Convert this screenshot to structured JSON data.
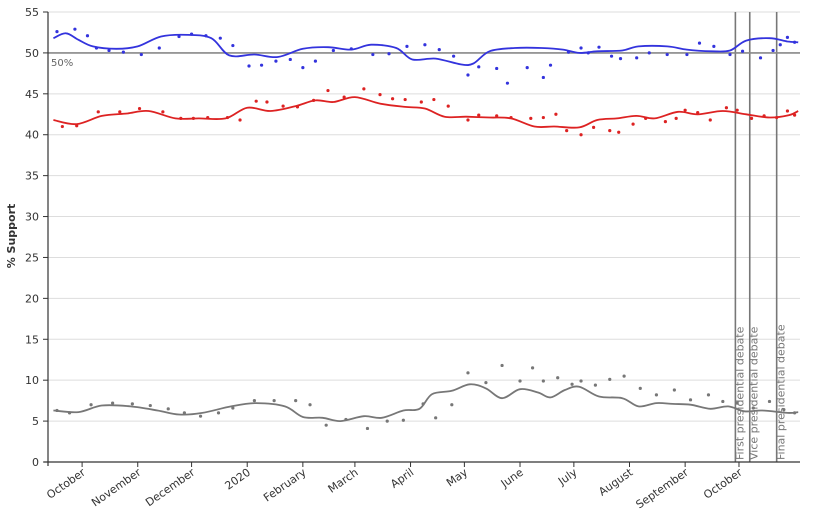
{
  "chart_data": {
    "type": "line",
    "ylabel": "% Support",
    "ylim": [
      0,
      55
    ],
    "y_ticks": [
      "0",
      "5",
      "10",
      "15",
      "20",
      "25",
      "30",
      "35",
      "40",
      "45",
      "50",
      "55"
    ],
    "grid": "horizontal",
    "x_tick_labels": [
      "October",
      "November",
      "December",
      "2020",
      "February",
      "March",
      "April",
      "May",
      "June",
      "July",
      "August",
      "September",
      "October"
    ],
    "reference_line": {
      "value": 50,
      "label": "50%"
    },
    "events": [
      "First presidential debate",
      "Vice presidential debate",
      "Final presidential debate"
    ],
    "colors": {
      "blue": "#3333dd",
      "red": "#dd2222",
      "gray": "#777777",
      "grid": "#dddddd"
    },
    "series": [
      {
        "color": "blue",
        "trend": [
          [
            "2019-09-15",
            51.8
          ],
          [
            "2019-09-22",
            52.4
          ],
          [
            "2019-09-29",
            51.6
          ],
          [
            "2019-10-07",
            50.8
          ],
          [
            "2019-10-20",
            50.5
          ],
          [
            "2019-11-01",
            50.8
          ],
          [
            "2019-11-14",
            52.0
          ],
          [
            "2019-11-29",
            52.2
          ],
          [
            "2019-12-12",
            51.8
          ],
          [
            "2019-12-22",
            49.7
          ],
          [
            "2020-01-05",
            49.8
          ],
          [
            "2020-01-18",
            49.5
          ],
          [
            "2020-02-01",
            50.5
          ],
          [
            "2020-02-15",
            50.7
          ],
          [
            "2020-02-28",
            50.4
          ],
          [
            "2020-03-10",
            51.0
          ],
          [
            "2020-03-24",
            50.6
          ],
          [
            "2020-04-02",
            49.2
          ],
          [
            "2020-04-15",
            49.3
          ],
          [
            "2020-04-29",
            48.6
          ],
          [
            "2020-05-06",
            48.7
          ],
          [
            "2020-05-15",
            50.2
          ],
          [
            "2020-05-29",
            50.6
          ],
          [
            "2020-06-13",
            50.6
          ],
          [
            "2020-06-25",
            50.4
          ],
          [
            "2020-07-04",
            50.0
          ],
          [
            "2020-07-14",
            50.2
          ],
          [
            "2020-07-28",
            50.3
          ],
          [
            "2020-08-06",
            50.8
          ],
          [
            "2020-08-22",
            50.8
          ],
          [
            "2020-09-02",
            50.4
          ],
          [
            "2020-09-16",
            50.2
          ],
          [
            "2020-09-26",
            50.3
          ],
          [
            "2020-10-05",
            51.5
          ],
          [
            "2020-10-18",
            51.8
          ],
          [
            "2020-10-28",
            51.4
          ],
          [
            "2020-11-03",
            51.3
          ]
        ],
        "polls": [
          [
            "2019-09-17",
            52.6
          ],
          [
            "2019-09-27",
            52.9
          ],
          [
            "2019-10-04",
            52.1
          ],
          [
            "2019-10-09",
            50.6
          ],
          [
            "2019-10-16",
            50.3
          ],
          [
            "2019-10-24",
            50.1
          ],
          [
            "2019-11-03",
            49.8
          ],
          [
            "2019-11-13",
            50.6
          ],
          [
            "2019-11-24",
            52.0
          ],
          [
            "2019-12-01",
            52.3
          ],
          [
            "2019-12-09",
            52.1
          ],
          [
            "2019-12-17",
            51.8
          ],
          [
            "2019-12-24",
            50.9
          ],
          [
            "2020-01-02",
            48.4
          ],
          [
            "2020-01-09",
            48.5
          ],
          [
            "2020-01-17",
            49.0
          ],
          [
            "2020-01-25",
            49.2
          ],
          [
            "2020-02-01",
            48.2
          ],
          [
            "2020-02-08",
            49.0
          ],
          [
            "2020-02-18",
            50.3
          ],
          [
            "2020-02-28",
            50.5
          ],
          [
            "2020-03-11",
            49.8
          ],
          [
            "2020-03-20",
            49.9
          ],
          [
            "2020-03-30",
            50.8
          ],
          [
            "2020-04-09",
            51.0
          ],
          [
            "2020-04-17",
            50.4
          ],
          [
            "2020-04-25",
            49.6
          ],
          [
            "2020-05-03",
            47.3
          ],
          [
            "2020-05-09",
            48.3
          ],
          [
            "2020-05-19",
            48.1
          ],
          [
            "2020-05-25",
            46.3
          ],
          [
            "2020-06-05",
            48.2
          ],
          [
            "2020-06-14",
            47.0
          ],
          [
            "2020-06-18",
            48.5
          ],
          [
            "2020-06-28",
            50.1
          ],
          [
            "2020-07-05",
            50.6
          ],
          [
            "2020-07-09",
            50.0
          ],
          [
            "2020-07-15",
            50.7
          ],
          [
            "2020-07-22",
            49.6
          ],
          [
            "2020-07-27",
            49.3
          ],
          [
            "2020-08-05",
            49.4
          ],
          [
            "2020-08-12",
            50.0
          ],
          [
            "2020-08-22",
            49.8
          ],
          [
            "2020-09-02",
            49.8
          ],
          [
            "2020-09-09",
            51.2
          ],
          [
            "2020-09-17",
            50.8
          ],
          [
            "2020-09-26",
            49.8
          ],
          [
            "2020-10-03",
            50.2
          ],
          [
            "2020-10-13",
            49.4
          ],
          [
            "2020-10-20",
            50.3
          ],
          [
            "2020-10-24",
            51.0
          ],
          [
            "2020-10-28",
            51.9
          ],
          [
            "2020-11-01",
            51.3
          ]
        ]
      },
      {
        "color": "red",
        "trend": [
          [
            "2019-09-15",
            41.8
          ],
          [
            "2019-09-28",
            41.3
          ],
          [
            "2019-10-12",
            42.3
          ],
          [
            "2019-10-26",
            42.6
          ],
          [
            "2019-11-07",
            42.9
          ],
          [
            "2019-11-22",
            42.0
          ],
          [
            "2019-12-05",
            42.0
          ],
          [
            "2019-12-20",
            42.0
          ],
          [
            "2020-01-01",
            43.3
          ],
          [
            "2020-01-14",
            42.9
          ],
          [
            "2020-01-28",
            43.5
          ],
          [
            "2020-02-08",
            44.2
          ],
          [
            "2020-02-18",
            44.0
          ],
          [
            "2020-03-01",
            44.6
          ],
          [
            "2020-03-15",
            43.8
          ],
          [
            "2020-03-29",
            43.4
          ],
          [
            "2020-04-09",
            43.2
          ],
          [
            "2020-04-20",
            42.2
          ],
          [
            "2020-05-02",
            42.2
          ],
          [
            "2020-05-15",
            42.1
          ],
          [
            "2020-05-27",
            42.0
          ],
          [
            "2020-06-09",
            41.0
          ],
          [
            "2020-06-20",
            41.0
          ],
          [
            "2020-07-04",
            40.9
          ],
          [
            "2020-07-14",
            41.8
          ],
          [
            "2020-07-25",
            42.0
          ],
          [
            "2020-08-05",
            42.3
          ],
          [
            "2020-08-15",
            42.0
          ],
          [
            "2020-08-28",
            42.8
          ],
          [
            "2020-09-08",
            42.5
          ],
          [
            "2020-09-22",
            42.9
          ],
          [
            "2020-10-05",
            42.5
          ],
          [
            "2020-10-18",
            42.1
          ],
          [
            "2020-10-29",
            42.4
          ],
          [
            "2020-11-03",
            42.9
          ]
        ],
        "polls": [
          [
            "2019-09-20",
            41.0
          ],
          [
            "2019-09-28",
            41.1
          ],
          [
            "2019-10-10",
            42.8
          ],
          [
            "2019-10-22",
            42.8
          ],
          [
            "2019-11-02",
            43.2
          ],
          [
            "2019-11-15",
            42.8
          ],
          [
            "2019-11-25",
            42.0
          ],
          [
            "2019-12-02",
            42.0
          ],
          [
            "2019-12-10",
            42.1
          ],
          [
            "2019-12-21",
            42.1
          ],
          [
            "2019-12-28",
            41.8
          ],
          [
            "2020-01-06",
            44.1
          ],
          [
            "2020-01-12",
            44.0
          ],
          [
            "2020-01-21",
            43.5
          ],
          [
            "2020-01-29",
            43.4
          ],
          [
            "2020-02-07",
            44.2
          ],
          [
            "2020-02-15",
            45.4
          ],
          [
            "2020-02-24",
            44.6
          ],
          [
            "2020-03-06",
            45.6
          ],
          [
            "2020-03-15",
            44.9
          ],
          [
            "2020-03-22",
            44.4
          ],
          [
            "2020-03-29",
            44.3
          ],
          [
            "2020-04-07",
            44.0
          ],
          [
            "2020-04-14",
            44.3
          ],
          [
            "2020-04-22",
            43.5
          ],
          [
            "2020-05-03",
            41.8
          ],
          [
            "2020-05-09",
            42.4
          ],
          [
            "2020-05-19",
            42.3
          ],
          [
            "2020-05-27",
            42.1
          ],
          [
            "2020-06-07",
            42.0
          ],
          [
            "2020-06-14",
            42.1
          ],
          [
            "2020-06-21",
            42.5
          ],
          [
            "2020-06-27",
            40.5
          ],
          [
            "2020-07-05",
            40.0
          ],
          [
            "2020-07-12",
            40.9
          ],
          [
            "2020-07-21",
            40.5
          ],
          [
            "2020-07-26",
            40.3
          ],
          [
            "2020-08-03",
            41.3
          ],
          [
            "2020-08-10",
            42.0
          ],
          [
            "2020-08-21",
            41.6
          ],
          [
            "2020-08-27",
            42.0
          ],
          [
            "2020-09-01",
            43.0
          ],
          [
            "2020-09-08",
            42.7
          ],
          [
            "2020-09-15",
            41.8
          ],
          [
            "2020-09-24",
            43.3
          ],
          [
            "2020-09-30",
            43.0
          ],
          [
            "2020-10-08",
            42.0
          ],
          [
            "2020-10-15",
            42.3
          ],
          [
            "2020-10-22",
            42.1
          ],
          [
            "2020-10-28",
            42.9
          ],
          [
            "2020-11-01",
            42.4
          ]
        ]
      },
      {
        "color": "gray",
        "trend": [
          [
            "2019-09-15",
            6.3
          ],
          [
            "2019-09-29",
            6.1
          ],
          [
            "2019-10-12",
            6.9
          ],
          [
            "2019-10-28",
            6.8
          ],
          [
            "2019-11-12",
            6.3
          ],
          [
            "2019-11-24",
            5.8
          ],
          [
            "2019-12-07",
            6.0
          ],
          [
            "2019-12-23",
            6.8
          ],
          [
            "2020-01-06",
            7.2
          ],
          [
            "2020-01-22",
            6.8
          ],
          [
            "2020-02-01",
            5.5
          ],
          [
            "2020-02-12",
            5.4
          ],
          [
            "2020-02-22",
            5.0
          ],
          [
            "2020-03-06",
            5.6
          ],
          [
            "2020-03-16",
            5.4
          ],
          [
            "2020-03-28",
            6.3
          ],
          [
            "2020-04-06",
            6.5
          ],
          [
            "2020-04-13",
            8.3
          ],
          [
            "2020-04-24",
            8.7
          ],
          [
            "2020-05-04",
            9.5
          ],
          [
            "2020-05-13",
            9.0
          ],
          [
            "2020-05-22",
            7.8
          ],
          [
            "2020-06-01",
            8.9
          ],
          [
            "2020-06-11",
            8.5
          ],
          [
            "2020-06-18",
            7.9
          ],
          [
            "2020-06-26",
            8.8
          ],
          [
            "2020-07-04",
            9.2
          ],
          [
            "2020-07-15",
            8.0
          ],
          [
            "2020-07-28",
            7.8
          ],
          [
            "2020-08-06",
            6.8
          ],
          [
            "2020-08-16",
            7.2
          ],
          [
            "2020-08-25",
            7.1
          ],
          [
            "2020-09-04",
            7.0
          ],
          [
            "2020-09-15",
            6.5
          ],
          [
            "2020-09-25",
            6.8
          ],
          [
            "2020-10-04",
            6.2
          ],
          [
            "2020-10-14",
            6.3
          ],
          [
            "2020-10-28",
            6.0
          ],
          [
            "2020-11-03",
            6.1
          ]
        ],
        "polls": [
          [
            "2019-09-17",
            6.3
          ],
          [
            "2019-09-24",
            6.0
          ],
          [
            "2019-10-06",
            7.0
          ],
          [
            "2019-10-18",
            7.2
          ],
          [
            "2019-10-29",
            7.1
          ],
          [
            "2019-11-08",
            6.9
          ],
          [
            "2019-11-18",
            6.5
          ],
          [
            "2019-11-27",
            6.0
          ],
          [
            "2019-12-06",
            5.6
          ],
          [
            "2019-12-16",
            6.0
          ],
          [
            "2019-12-24",
            6.6
          ],
          [
            "2020-01-05",
            7.5
          ],
          [
            "2020-01-16",
            7.5
          ],
          [
            "2020-01-28",
            7.5
          ],
          [
            "2020-02-05",
            7.0
          ],
          [
            "2020-02-14",
            4.5
          ],
          [
            "2020-02-25",
            5.2
          ],
          [
            "2020-03-08",
            4.1
          ],
          [
            "2020-03-19",
            5.0
          ],
          [
            "2020-03-28",
            5.1
          ],
          [
            "2020-04-08",
            7.1
          ],
          [
            "2020-04-15",
            5.4
          ],
          [
            "2020-04-24",
            7.0
          ],
          [
            "2020-05-03",
            10.9
          ],
          [
            "2020-05-13",
            9.7
          ],
          [
            "2020-05-22",
            11.8
          ],
          [
            "2020-06-01",
            9.9
          ],
          [
            "2020-06-08",
            11.5
          ],
          [
            "2020-06-14",
            9.9
          ],
          [
            "2020-06-22",
            10.3
          ],
          [
            "2020-06-30",
            9.5
          ],
          [
            "2020-07-05",
            9.9
          ],
          [
            "2020-07-13",
            9.4
          ],
          [
            "2020-07-21",
            10.1
          ],
          [
            "2020-07-29",
            10.5
          ],
          [
            "2020-08-07",
            9.0
          ],
          [
            "2020-08-16",
            8.2
          ],
          [
            "2020-08-26",
            8.8
          ],
          [
            "2020-09-04",
            7.6
          ],
          [
            "2020-09-14",
            8.2
          ],
          [
            "2020-09-22",
            7.4
          ],
          [
            "2020-09-30",
            7.2
          ],
          [
            "2020-10-09",
            6.6
          ],
          [
            "2020-10-18",
            7.4
          ],
          [
            "2020-10-26",
            6.4
          ],
          [
            "2020-11-01",
            6.0
          ]
        ]
      }
    ]
  }
}
